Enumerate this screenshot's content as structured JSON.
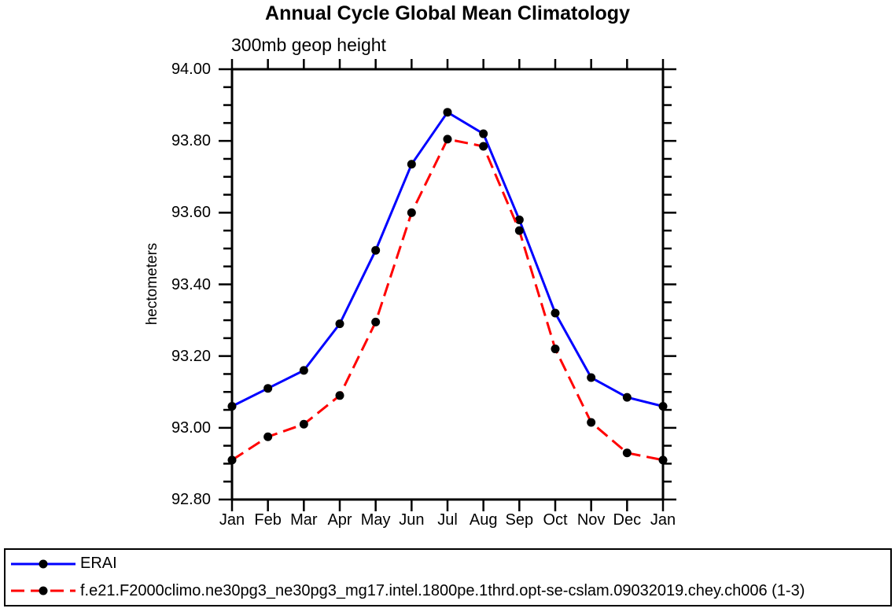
{
  "page": {
    "background": "#ffffff"
  },
  "chart": {
    "title": "Annual Cycle Global Mean Climatology",
    "subtitle": "300mb geop height",
    "ylabel": "hectometers"
  },
  "legend": {
    "entries": [
      {
        "label": "ERAI",
        "color": "#0000ff",
        "dashed": false,
        "marker_color": "#000000"
      },
      {
        "label": "f.e21.F2000climo.ne30pg3_ne30pg3_mg17.intel.1800pe.1thrd.opt-se-cslam.09032019.chey.ch006 (1-3)",
        "color": "#ff0000",
        "dashed": true,
        "marker_color": "#000000"
      }
    ]
  },
  "chart_data": {
    "type": "line",
    "title": "Annual Cycle Global Mean Climatology",
    "subtitle": "300mb geop height",
    "xlabel": "",
    "ylabel": "hectometers",
    "categories": [
      "Jan",
      "Feb",
      "Mar",
      "Apr",
      "May",
      "Jun",
      "Jul",
      "Aug",
      "Sep",
      "Oct",
      "Nov",
      "Dec",
      "Jan"
    ],
    "series": [
      {
        "name": "ERAI",
        "color": "#0000ff",
        "style": "solid",
        "marker": "circle",
        "marker_color": "#000000",
        "values": [
          93.06,
          93.11,
          93.16,
          93.29,
          93.495,
          93.735,
          93.88,
          93.82,
          93.58,
          93.32,
          93.14,
          93.085,
          93.06
        ]
      },
      {
        "name": "f.e21.F2000climo.ne30pg3_ne30pg3_mg17.intel.1800pe.1thrd.opt-se-cslam.09032019.chey.ch006 (1-3)",
        "color": "#ff0000",
        "style": "dashed",
        "marker": "circle",
        "marker_color": "#000000",
        "values": [
          92.91,
          92.975,
          93.01,
          93.09,
          93.295,
          93.6,
          93.805,
          93.785,
          93.55,
          93.22,
          93.015,
          92.93,
          92.91
        ]
      }
    ],
    "ylim": [
      92.8,
      94.0
    ],
    "ytick_step": 0.2,
    "yminor_step": 0.05,
    "ytick_labels": [
      "94.00",
      "93.80",
      "93.60",
      "93.40",
      "93.20",
      "93.00",
      "92.80"
    ],
    "grid": false,
    "axis_color": "#000000",
    "legend_position": "bottom-left-box"
  }
}
